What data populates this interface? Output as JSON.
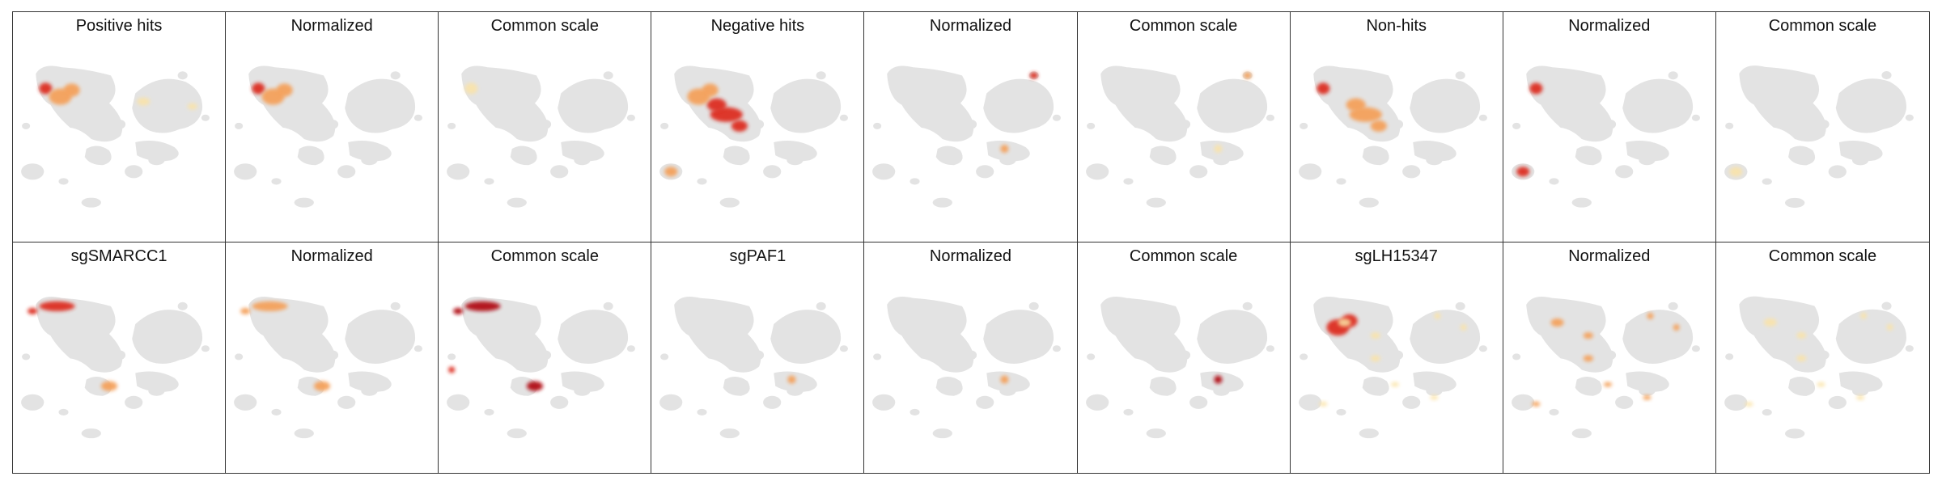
{
  "figure": {
    "panels": [
      {
        "title": "Positive hits",
        "chart_data": {
          "type": "heatmap",
          "title": "Positive hits",
          "hotspots": [
            {
              "region": "upper-left arm",
              "intensity": "high"
            },
            {
              "region": "upper-left lobe",
              "intensity": "medium"
            },
            {
              "region": "right ring",
              "intensity": "low"
            }
          ]
        }
      },
      {
        "title": "Normalized",
        "chart_data": {
          "type": "heatmap",
          "title": "Normalized",
          "hotspots": [
            {
              "region": "upper-left arm",
              "intensity": "high"
            },
            {
              "region": "upper-left lobe",
              "intensity": "medium"
            }
          ]
        }
      },
      {
        "title": "Common scale",
        "chart_data": {
          "type": "heatmap",
          "title": "Common scale",
          "hotspots": [
            {
              "region": "upper-left arm",
              "intensity": "low"
            }
          ]
        }
      },
      {
        "title": "Negative hits",
        "chart_data": {
          "type": "heatmap",
          "title": "Negative hits",
          "hotspots": [
            {
              "region": "central body",
              "intensity": "high"
            },
            {
              "region": "upper-left lobe",
              "intensity": "medium"
            },
            {
              "region": "lower-left island",
              "intensity": "medium"
            }
          ]
        }
      },
      {
        "title": "Normalized",
        "chart_data": {
          "type": "heatmap",
          "title": "Normalized",
          "hotspots": [
            {
              "region": "top-right island",
              "intensity": "high"
            },
            {
              "region": "lower-right arm",
              "intensity": "medium"
            }
          ]
        }
      },
      {
        "title": "Common scale",
        "chart_data": {
          "type": "heatmap",
          "title": "Common scale",
          "hotspots": [
            {
              "region": "top-right island",
              "intensity": "medium"
            },
            {
              "region": "lower-right arm",
              "intensity": "low"
            }
          ]
        }
      },
      {
        "title": "Non-hits",
        "chart_data": {
          "type": "heatmap",
          "title": "Non-hits",
          "hotspots": [
            {
              "region": "upper-left arm",
              "intensity": "high"
            },
            {
              "region": "central body",
              "intensity": "medium"
            }
          ]
        }
      },
      {
        "title": "Normalized",
        "chart_data": {
          "type": "heatmap",
          "title": "Normalized",
          "hotspots": [
            {
              "region": "lower-left island",
              "intensity": "high"
            },
            {
              "region": "upper-left arm",
              "intensity": "high"
            }
          ]
        }
      },
      {
        "title": "Common scale",
        "chart_data": {
          "type": "heatmap",
          "title": "Common scale",
          "hotspots": [
            {
              "region": "lower-left island",
              "intensity": "low"
            }
          ]
        }
      },
      {
        "title": "sgSMARCC1",
        "chart_data": {
          "type": "heatmap",
          "title": "sgSMARCC1",
          "hotspots": [
            {
              "region": "top-left band",
              "intensity": "high"
            },
            {
              "region": "lower-central arm",
              "intensity": "medium"
            }
          ]
        }
      },
      {
        "title": "Normalized",
        "chart_data": {
          "type": "heatmap",
          "title": "Normalized",
          "hotspots": [
            {
              "region": "top-left band",
              "intensity": "medium"
            },
            {
              "region": "lower-central arm",
              "intensity": "medium"
            }
          ]
        }
      },
      {
        "title": "Common scale",
        "chart_data": {
          "type": "heatmap",
          "title": "Common scale",
          "hotspots": [
            {
              "region": "top-left band",
              "intensity": "very high"
            },
            {
              "region": "lower-central arm",
              "intensity": "very high"
            },
            {
              "region": "left edge",
              "intensity": "high"
            }
          ]
        }
      },
      {
        "title": "sgPAF1",
        "chart_data": {
          "type": "heatmap",
          "title": "sgPAF1",
          "hotspots": [
            {
              "region": "lower-right arm",
              "intensity": "medium"
            }
          ]
        }
      },
      {
        "title": "Normalized",
        "chart_data": {
          "type": "heatmap",
          "title": "Normalized",
          "hotspots": [
            {
              "region": "lower-right arm",
              "intensity": "medium"
            }
          ]
        }
      },
      {
        "title": "Common scale",
        "chart_data": {
          "type": "heatmap",
          "title": "Common scale",
          "hotspots": [
            {
              "region": "lower-right arm",
              "intensity": "very high"
            }
          ]
        }
      },
      {
        "title": "sgLH15347",
        "chart_data": {
          "type": "heatmap",
          "title": "sgLH15347",
          "hotspots": [
            {
              "region": "upper-left lobe",
              "intensity": "high"
            },
            {
              "region": "scattered",
              "intensity": "low"
            }
          ]
        }
      },
      {
        "title": "Normalized",
        "chart_data": {
          "type": "heatmap",
          "title": "Normalized",
          "hotspots": [
            {
              "region": "scattered",
              "intensity": "medium"
            }
          ]
        }
      },
      {
        "title": "Common scale",
        "chart_data": {
          "type": "heatmap",
          "title": "Common scale",
          "hotspots": [
            {
              "region": "scattered",
              "intensity": "low"
            }
          ]
        }
      }
    ]
  },
  "colors": {
    "background_cells": "#e3e3e3",
    "low": "#fbe3a6",
    "medium": "#f4a15c",
    "high": "#dd2e22",
    "very_high": "#b10e14"
  }
}
